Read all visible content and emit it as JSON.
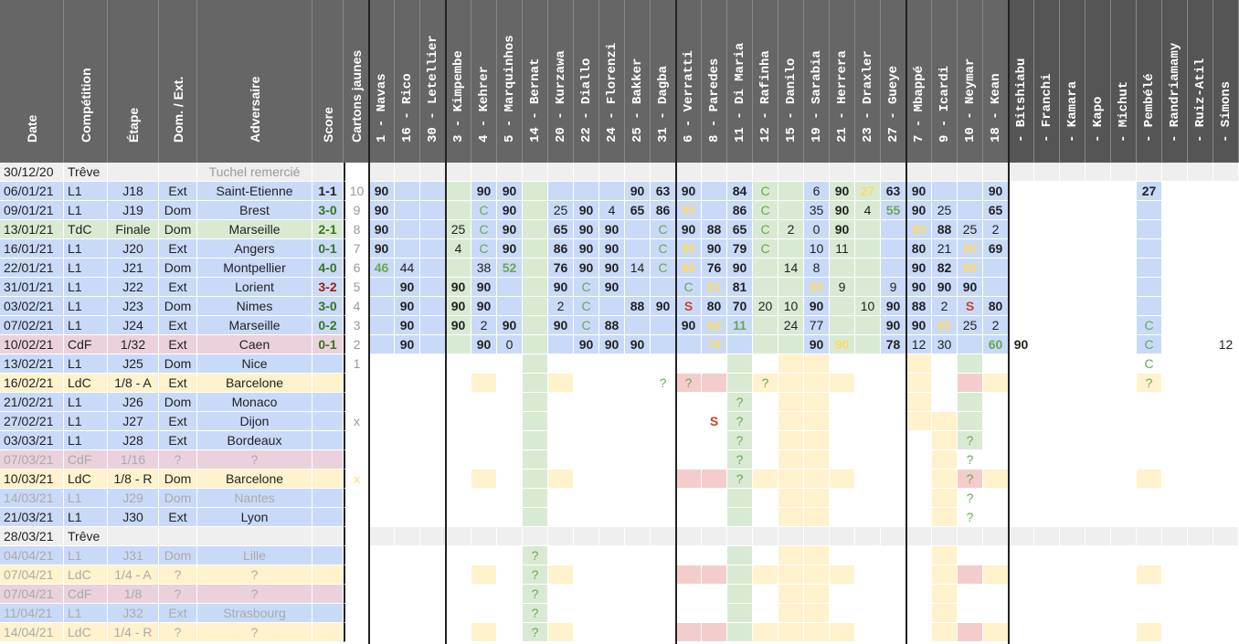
{
  "headers": {
    "date": "Date",
    "competition": "Compétition",
    "etape": "Étape",
    "domext": "Dom. / Ext.",
    "adversaire": "Adversaire",
    "score": "Score",
    "cartons": "Cartons jaunes"
  },
  "players": [
    "1 - Navas",
    "16 - Rico",
    "30 - Letellier",
    "3 - Kimpembe",
    "4 - Kehrer",
    "5 - Marquinhos",
    "14 - Bernat",
    "20 - Kurzawa",
    "22 - Diallo",
    "24 - Florenzi",
    "25 - Bakker",
    "31 - Dagba",
    "6 - Verratti",
    "8 - Paredes",
    "11 - Di Maria",
    "12 - Rafinha",
    "15 - Danilo",
    "19 - Sarabia",
    "21 - Herrera",
    "23 - Draxler",
    "27 - Gueye",
    "7 - Mbappé",
    "9 - Icardi",
    "10 - Neymar",
    "18 - Kean",
    "- Bitshiabu",
    "- Franchi",
    "- Kamara",
    "- Kapo",
    "- Michut",
    "- Pembélé",
    "- Randriamamy",
    "- Ruiz-Atil",
    "- Simons"
  ],
  "rows": [
    {
      "date": "30/12/20",
      "comp": "Trêve",
      "etape": "",
      "lieu": "",
      "adv": "Tuchel remercié",
      "score": "",
      "cj": ""
    },
    {
      "date": "06/01/21",
      "comp": "L1",
      "etape": "J18",
      "lieu": "Ext",
      "adv": "Saint-Etienne",
      "score": "1-1",
      "cj": "10"
    },
    {
      "date": "09/01/21",
      "comp": "L1",
      "etape": "J19",
      "lieu": "Dom",
      "adv": "Brest",
      "score": "3-0",
      "cj": "9"
    },
    {
      "date": "13/01/21",
      "comp": "TdC",
      "etape": "Finale",
      "lieu": "Dom",
      "adv": "Marseille",
      "score": "2-1",
      "cj": "8"
    },
    {
      "date": "16/01/21",
      "comp": "L1",
      "etape": "J20",
      "lieu": "Ext",
      "adv": "Angers",
      "score": "0-1",
      "cj": "7"
    },
    {
      "date": "22/01/21",
      "comp": "L1",
      "etape": "J21",
      "lieu": "Dom",
      "adv": "Montpellier",
      "score": "4-0",
      "cj": "6"
    },
    {
      "date": "31/01/21",
      "comp": "L1",
      "etape": "J22",
      "lieu": "Ext",
      "adv": "Lorient",
      "score": "3-2",
      "cj": "5"
    },
    {
      "date": "03/02/21",
      "comp": "L1",
      "etape": "J23",
      "lieu": "Dom",
      "adv": "Nimes",
      "score": "3-0",
      "cj": "4"
    },
    {
      "date": "07/02/21",
      "comp": "L1",
      "etape": "J24",
      "lieu": "Ext",
      "adv": "Marseille",
      "score": "0-2",
      "cj": "3"
    },
    {
      "date": "10/02/21",
      "comp": "CdF",
      "etape": "1/32",
      "lieu": "Ext",
      "adv": "Caen",
      "score": "0-1",
      "cj": "2"
    },
    {
      "date": "13/02/21",
      "comp": "L1",
      "etape": "J25",
      "lieu": "Dom",
      "adv": "Nice",
      "score": "",
      "cj": "1"
    },
    {
      "date": "16/02/21",
      "comp": "LdC",
      "etape": "1/8 - A",
      "lieu": "Ext",
      "adv": "Barcelone",
      "score": "",
      "cj": ""
    },
    {
      "date": "21/02/21",
      "comp": "L1",
      "etape": "J26",
      "lieu": "Dom",
      "adv": "Monaco",
      "score": "",
      "cj": ""
    },
    {
      "date": "27/02/21",
      "comp": "L1",
      "etape": "J27",
      "lieu": "Ext",
      "adv": "Dijon",
      "score": "",
      "cj": "x"
    },
    {
      "date": "03/03/21",
      "comp": "L1",
      "etape": "J28",
      "lieu": "Ext",
      "adv": "Bordeaux",
      "score": "",
      "cj": ""
    },
    {
      "date": "07/03/21",
      "comp": "CdF",
      "etape": "1/16",
      "lieu": "?",
      "adv": "?",
      "score": "",
      "cj": ""
    },
    {
      "date": "10/03/21",
      "comp": "LdC",
      "etape": "1/8 - R",
      "lieu": "Dom",
      "adv": "Barcelone",
      "score": "",
      "cj": "x"
    },
    {
      "date": "14/03/21",
      "comp": "L1",
      "etape": "J29",
      "lieu": "Dom",
      "adv": "Nantes",
      "score": "",
      "cj": ""
    },
    {
      "date": "21/03/21",
      "comp": "L1",
      "etape": "J30",
      "lieu": "Ext",
      "adv": "Lyon",
      "score": "",
      "cj": ""
    },
    {
      "date": "28/03/21",
      "comp": "Trêve",
      "etape": "",
      "lieu": "",
      "adv": "",
      "score": "",
      "cj": ""
    },
    {
      "date": "04/04/21",
      "comp": "L1",
      "etape": "J31",
      "lieu": "Dom",
      "adv": "Lille",
      "score": "",
      "cj": ""
    },
    {
      "date": "07/04/21",
      "comp": "LdC",
      "etape": "1/4 - A",
      "lieu": "?",
      "adv": "?",
      "score": "",
      "cj": ""
    },
    {
      "date": "07/04/21",
      "comp": "CdF",
      "etape": "1/8",
      "lieu": "?",
      "adv": "?",
      "score": "",
      "cj": ""
    },
    {
      "date": "11/04/21",
      "comp": "L1",
      "etape": "J32",
      "lieu": "Ext",
      "adv": "Strasbourg",
      "score": "",
      "cj": ""
    },
    {
      "date": "14/04/21",
      "comp": "LdC",
      "etape": "1/4 - R",
      "lieu": "?",
      "adv": "?",
      "score": "",
      "cj": ""
    }
  ],
  "stats": {
    "1": {
      "0": "90",
      "4": "90",
      "5": "90",
      "10": "90",
      "11": "63",
      "12": "90",
      "14": "84",
      "15": "C",
      "17": "6",
      "18": "90",
      "19": "27",
      "20": "63",
      "21": "90",
      "24": "90",
      "30": "27"
    },
    "2": {
      "0": "90",
      "4": "C",
      "5": "90",
      "7": "25",
      "8": "90",
      "9": "4",
      "10": "65",
      "11": "86",
      "12": "90",
      "14": "86",
      "15": "C",
      "17": "35",
      "18": "90",
      "19": "4",
      "20": "55",
      "21": "90",
      "22": "25",
      "24": "65"
    },
    "3": {
      "0": "90",
      "3": "25",
      "4": "C",
      "5": "90",
      "7": "65",
      "8": "90",
      "9": "90",
      "11": "C",
      "12": "90",
      "13": "88",
      "14": "65",
      "15": "C",
      "16": "2",
      "17": "0",
      "18": "90",
      "21": "90",
      "22": "88",
      "23": "25",
      "24": "2"
    },
    "4": {
      "0": "90",
      "3": "4",
      "4": "C",
      "5": "90",
      "7": "86",
      "8": "90",
      "9": "90",
      "11": "C",
      "12": "90",
      "13": "90",
      "14": "79",
      "15": "C",
      "17": "10",
      "18": "11",
      "21": "80",
      "22": "21",
      "23": "90",
      "24": "69"
    },
    "5": {
      "0": "46",
      "1": "44",
      "4": "38",
      "5": "52",
      "7": "76",
      "8": "90",
      "9": "90",
      "10": "14",
      "11": "C",
      "12": "90",
      "13": "76",
      "14": "90",
      "16": "14",
      "17": "8",
      "21": "90",
      "22": "82",
      "23": "90"
    },
    "6": {
      "1": "90",
      "3": "90",
      "4": "90",
      "7": "90",
      "8": "C",
      "9": "90",
      "12": "C",
      "13": "81",
      "14": "81",
      "17": "90",
      "18": "9",
      "20": "9",
      "21": "90",
      "22": "90",
      "23": "90"
    },
    "7": {
      "1": "90",
      "3": "90",
      "4": "90",
      "7": "2",
      "8": "C",
      "10": "88",
      "11": "90",
      "12": "S",
      "13": "80",
      "14": "70",
      "15": "20",
      "16": "10",
      "17": "90",
      "19": "10",
      "20": "90",
      "21": "88",
      "22": "2",
      "23": "S",
      "24": "80"
    },
    "8": {
      "1": "90",
      "3": "90",
      "4": "2",
      "5": "90",
      "7": "90",
      "8": "C",
      "9": "88",
      "12": "90",
      "13": "66",
      "14": "11",
      "16": "24",
      "17": "77",
      "20": "90",
      "21": "90",
      "22": "65",
      "23": "25",
      "24": "2",
      "30": "C"
    },
    "9": {
      "1": "90",
      "4": "90",
      "5": "0",
      "8": "90",
      "9": "90",
      "10": "90",
      "13": "78",
      "17": "90",
      "18": "90",
      "20": "78",
      "21": "12",
      "22": "30",
      "24": "60",
      "25": "90",
      "30": "C",
      "33": "12"
    },
    "10": {
      "30": "C"
    },
    "11": {
      "11": "?",
      "12": "?",
      "15": "?",
      "30": "?"
    },
    "12": {
      "14": "?"
    },
    "13": {
      "13": "S",
      "14": "?"
    },
    "14": {
      "14": "?",
      "23": "?"
    },
    "15": {
      "14": "?",
      "23": "?"
    },
    "16": {
      "14": "?",
      "23": "?"
    },
    "17": {
      "23": "?"
    },
    "18": {
      "23": "?"
    },
    "20": {
      "6": "?"
    },
    "21": {
      "6": "?"
    },
    "22": {
      "6": "?"
    },
    "23": {
      "6": "?"
    },
    "24": {
      "6": "?"
    }
  },
  "colors": {
    "blue": "#c9daf8",
    "green": "#d9ead3",
    "yellow": "#fff2cc",
    "red": "#ead1dc",
    "pink": "#f4cccc",
    "gray": "#efefef",
    "darkgray": "#d9d9d9",
    "header_bg": "#666666",
    "score_green": "#38761d",
    "score_red": "#a61c00",
    "highlight_yellow": "#ffd966",
    "sub_green": "#6aa84f",
    "susp_red": "#cc4125"
  }
}
